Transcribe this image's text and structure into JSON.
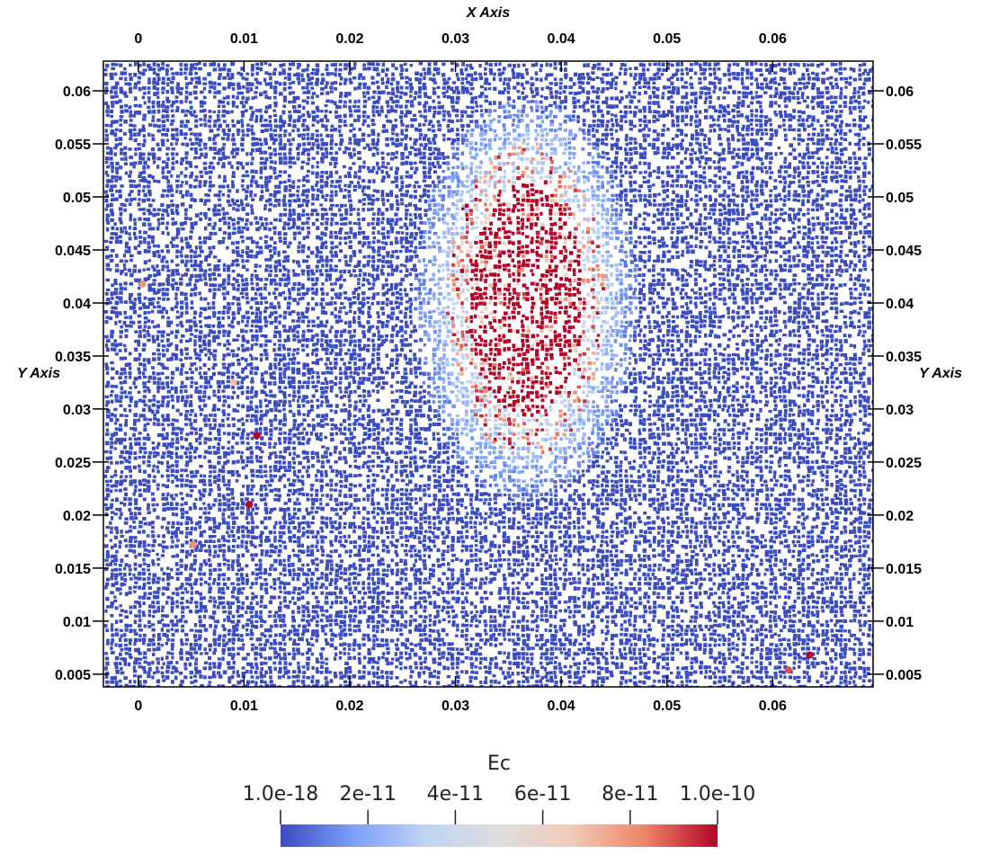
{
  "chart_data": {
    "type": "heatmap",
    "title": "",
    "xlabel": "X Axis",
    "ylabel": "Y Axis",
    "xlim": [
      -0.0033,
      0.0695
    ],
    "ylim": [
      0.0038,
      0.0628
    ],
    "x_ticks": [
      0,
      0.01,
      0.02,
      0.03,
      0.04,
      0.05,
      0.06
    ],
    "x_tick_labels": [
      "0",
      "0.01",
      "0.02",
      "0.03",
      "0.04",
      "0.05",
      "0.06"
    ],
    "y_ticks": [
      0.005,
      0.01,
      0.015,
      0.02,
      0.025,
      0.03,
      0.035,
      0.04,
      0.045,
      0.05,
      0.055,
      0.06
    ],
    "y_tick_labels": [
      "0.005",
      "0.01",
      "0.015",
      "0.02",
      "0.025",
      "0.03",
      "0.035",
      "0.04",
      "0.045",
      "0.05",
      "0.055",
      "0.06"
    ],
    "background_value": 1e-18,
    "hotspot": {
      "center_x": 0.0365,
      "center_y": 0.0405,
      "core_radius_x": 0.0055,
      "core_radius_y": 0.011,
      "halo_radius_x": 0.0105,
      "halo_radius_y": 0.019,
      "peak_value": 1e-10
    },
    "scattered_points": [
      {
        "x": 0.0112,
        "y": 0.0275,
        "value": 1e-10
      },
      {
        "x": 0.0105,
        "y": 0.021,
        "value": 1e-10
      },
      {
        "x": 0.0635,
        "y": 0.0068,
        "value": 1e-10
      },
      {
        "x": 0.0615,
        "y": 0.0054,
        "value": 9e-11
      },
      {
        "x": 0.0004,
        "y": 0.0418,
        "value": 8e-11
      },
      {
        "x": 0.009,
        "y": 0.0325,
        "value": 7e-11
      },
      {
        "x": 0.0052,
        "y": 0.0172,
        "value": 8e-11
      }
    ],
    "colorbar": {
      "title": "Ec",
      "min": 1e-18,
      "max": 1e-10,
      "ticks": [
        1e-18,
        2e-11,
        4e-11,
        6e-11,
        8e-11,
        1e-10
      ],
      "tick_labels": [
        "1.0e-18",
        "2e-11",
        "4e-11",
        "6e-11",
        "8e-11",
        "1.0e-10"
      ],
      "colors": [
        "#3b4cc0",
        "#7b9ff9",
        "#c0d4f5",
        "#dddddd",
        "#f2cbb7",
        "#ee8468",
        "#b40426"
      ]
    }
  }
}
